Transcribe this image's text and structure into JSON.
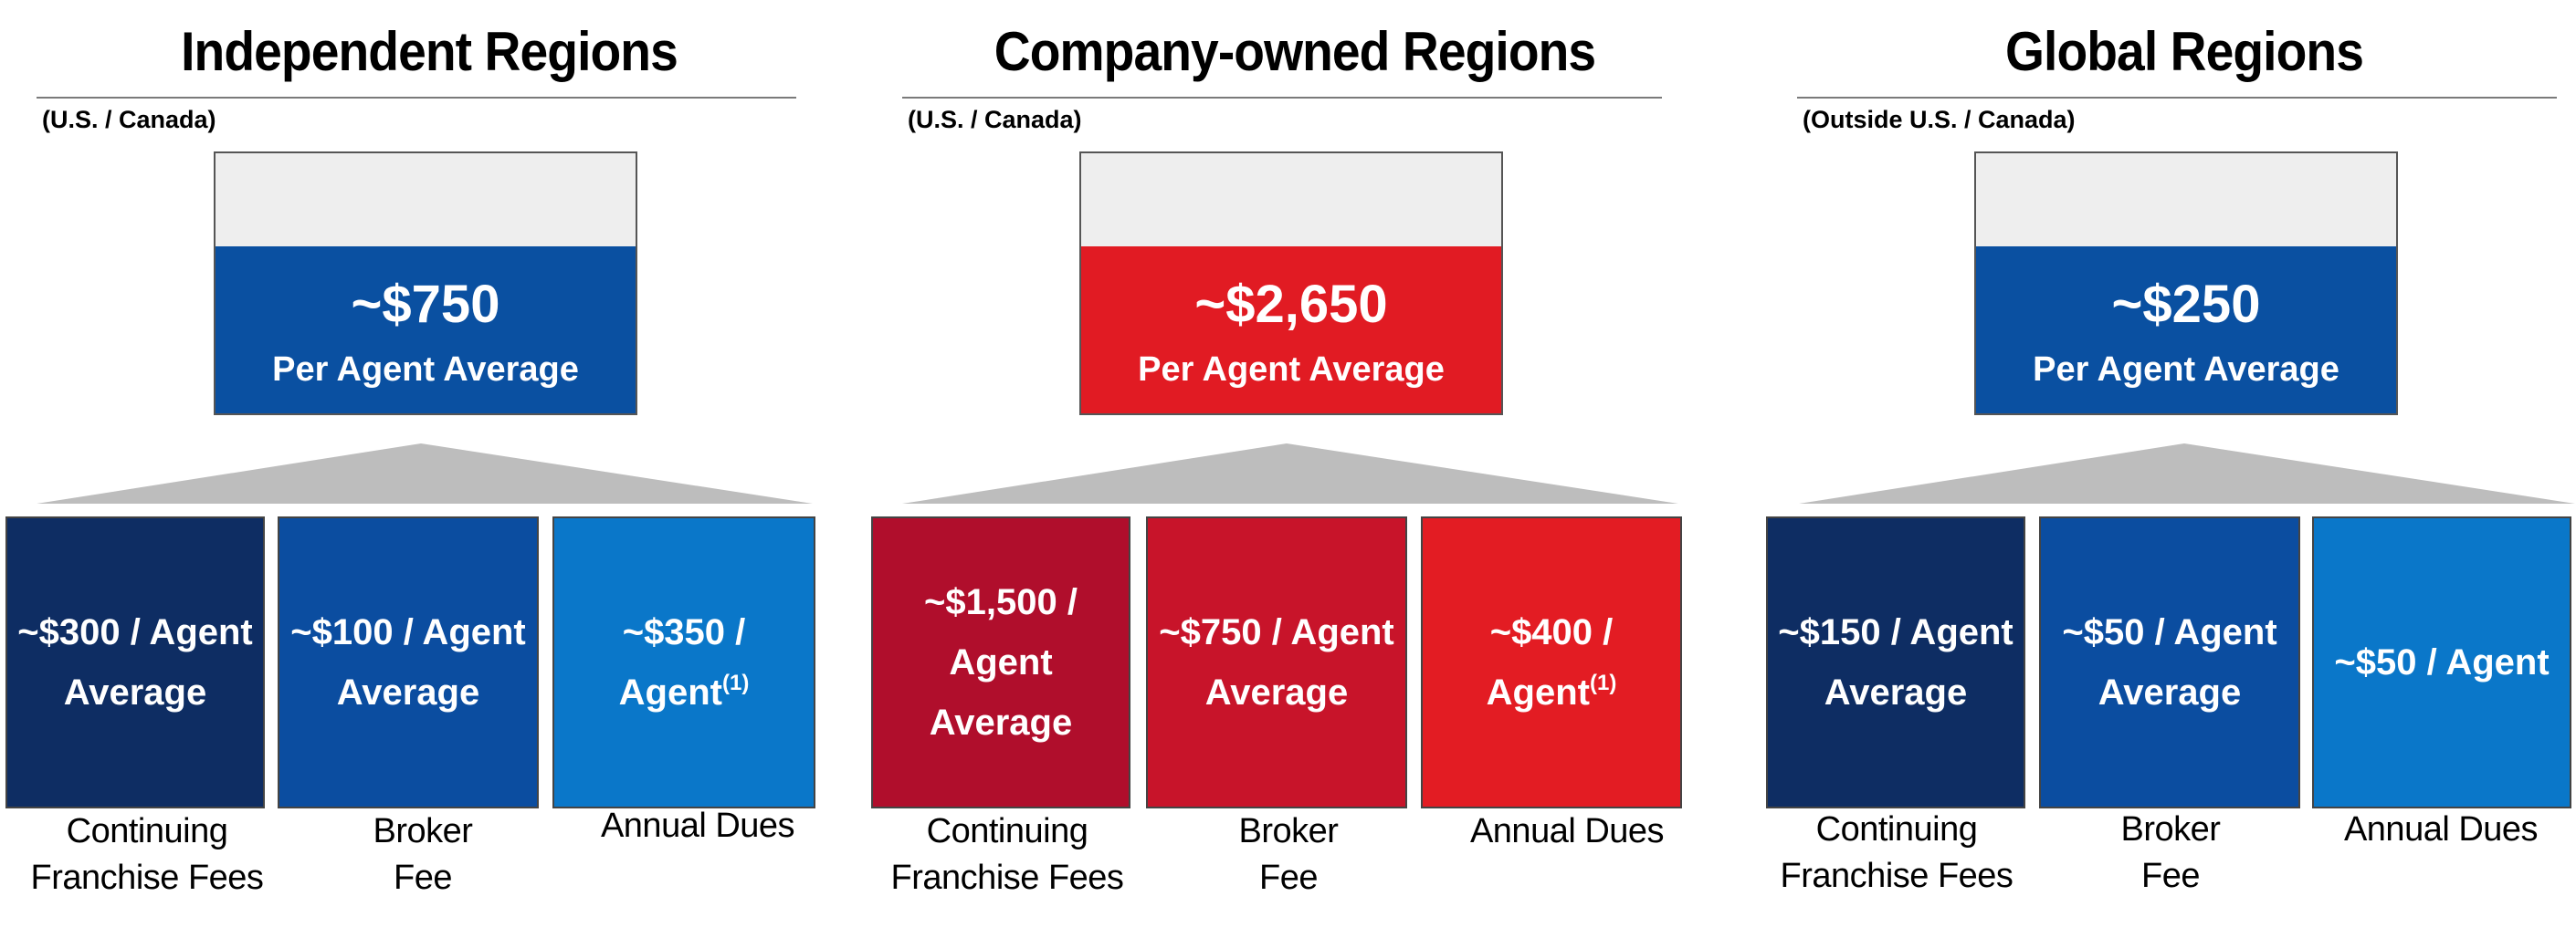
{
  "regions": [
    {
      "title": "Independent Regions",
      "subtitle": "(U.S. / Canada)",
      "summary": {
        "amount": "~$750",
        "label": "Per Agent Average",
        "color": "#0a50a1"
      },
      "boxes": [
        {
          "text": "~$300 / Agent\nAverage",
          "sup": "",
          "label": "Continuing\nFranchise Fees",
          "color": "#0e2d63"
        },
        {
          "text": "~$100 / Agent\nAverage",
          "sup": "",
          "label": "Broker\nFee",
          "color": "#0b4da0"
        },
        {
          "text": "~$350 / Agent",
          "sup": "(1)",
          "label": "Annual Dues",
          "color": "#0a77c9"
        }
      ]
    },
    {
      "title": "Company-owned Regions",
      "subtitle": "(U.S. / Canada)",
      "summary": {
        "amount": "~$2,650",
        "label": "Per Agent Average",
        "color": "#e11b23"
      },
      "boxes": [
        {
          "text": "~$1,500 / Agent\nAverage",
          "sup": "",
          "label": "Continuing\nFranchise Fees",
          "color": "#b00e2c"
        },
        {
          "text": "~$750 / Agent\nAverage",
          "sup": "",
          "label": "Broker\nFee",
          "color": "#c8142a"
        },
        {
          "text": "~$400 / Agent",
          "sup": "(1)",
          "label": "Annual Dues",
          "color": "#e31c23"
        }
      ]
    },
    {
      "title": "Global Regions",
      "subtitle": "(Outside U.S. / Canada)",
      "summary": {
        "amount": "~$250",
        "label": "Per Agent Average",
        "color": "#0a50a1"
      },
      "boxes": [
        {
          "text": "~$150 / Agent\nAverage",
          "sup": "",
          "label": "Continuing\nFranchise Fees",
          "color": "#0e2d63"
        },
        {
          "text": "~$50 / Agent\nAverage",
          "sup": "",
          "label": "Broker\nFee",
          "color": "#0b4da0"
        },
        {
          "text": "~$50 / Agent",
          "sup": "",
          "label": "Annual Dues",
          "color": "#0a77c9"
        }
      ]
    }
  ]
}
